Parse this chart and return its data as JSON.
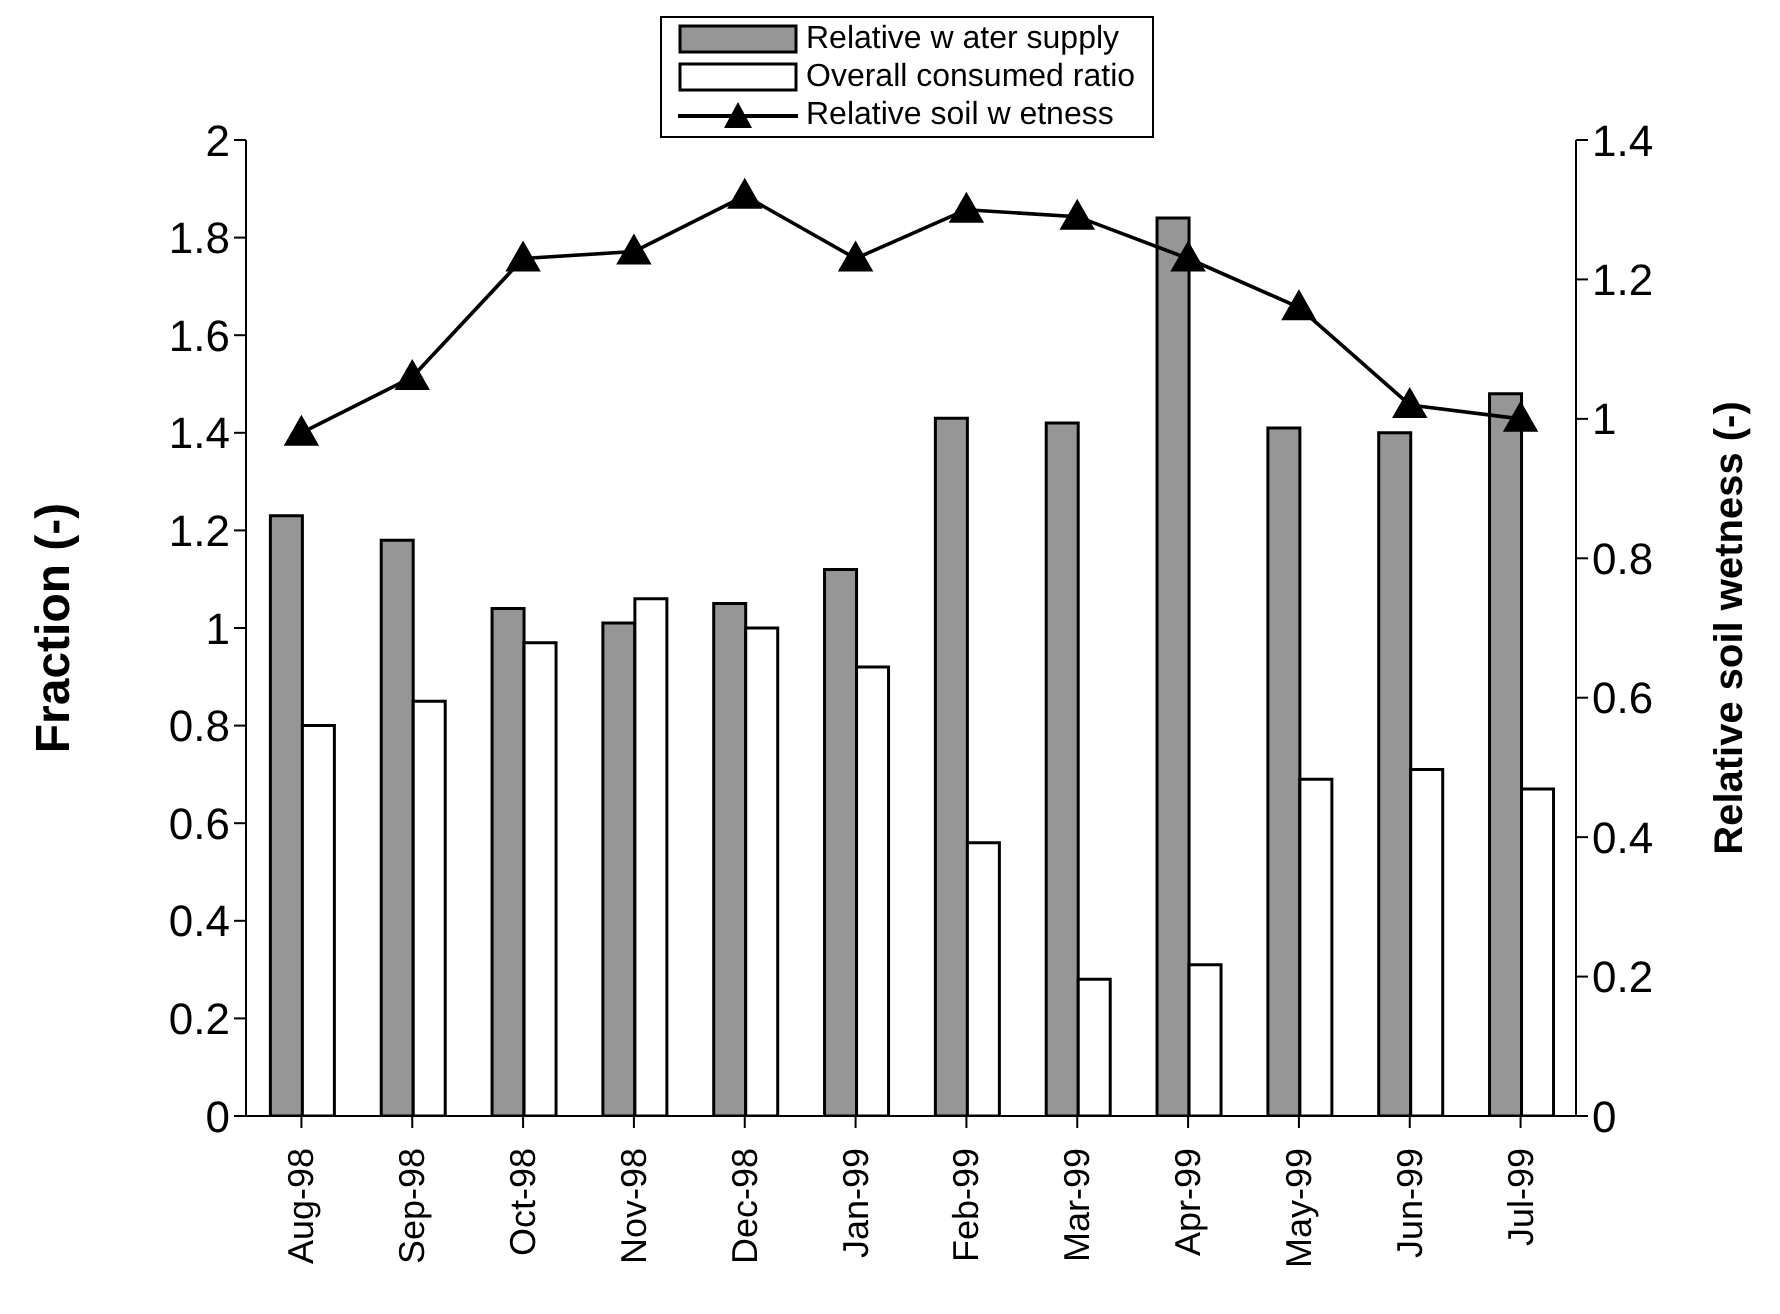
{
  "chart_data": {
    "type": "bar",
    "ylabel": "Fraction (-)",
    "y2label": "Relative soil wetness (-)",
    "categories": [
      "Aug-98",
      "Sep-98",
      "Oct-98",
      "Nov-98",
      "Dec-98",
      "Jan-99",
      "Feb-99",
      "Mar-99",
      "Apr-99",
      "May-99",
      "Jun-99",
      "Jul-99"
    ],
    "series": [
      {
        "name": "Relative w ater supply",
        "color": "#969696",
        "values": [
          1.23,
          1.18,
          1.04,
          1.01,
          1.05,
          1.12,
          1.43,
          1.42,
          1.84,
          1.41,
          1.4,
          1.48
        ]
      },
      {
        "name": "Overall consumed ratio",
        "color": "#ffffff",
        "values": [
          0.8,
          0.85,
          0.97,
          1.06,
          1.0,
          0.92,
          0.56,
          0.28,
          0.31,
          0.69,
          0.71,
          0.67
        ]
      },
      {
        "name": "Relative soil w etness",
        "type": "line",
        "axis": "y2",
        "color": "#000000",
        "marker": "triangle",
        "values": [
          0.98,
          1.06,
          1.23,
          1.24,
          1.32,
          1.23,
          1.3,
          1.29,
          1.23,
          1.16,
          1.02,
          1.0
        ]
      }
    ],
    "ylim": [
      0,
      2
    ],
    "yticks": [
      0,
      0.2,
      0.4,
      0.6,
      0.8,
      1,
      1.2,
      1.4,
      1.6,
      1.8,
      2
    ],
    "y2lim": [
      0,
      1.4
    ],
    "y2ticks": [
      0,
      0.2,
      0.4,
      0.6,
      0.8,
      1,
      1.2,
      1.4
    ],
    "legend": "top",
    "grid": false
  }
}
